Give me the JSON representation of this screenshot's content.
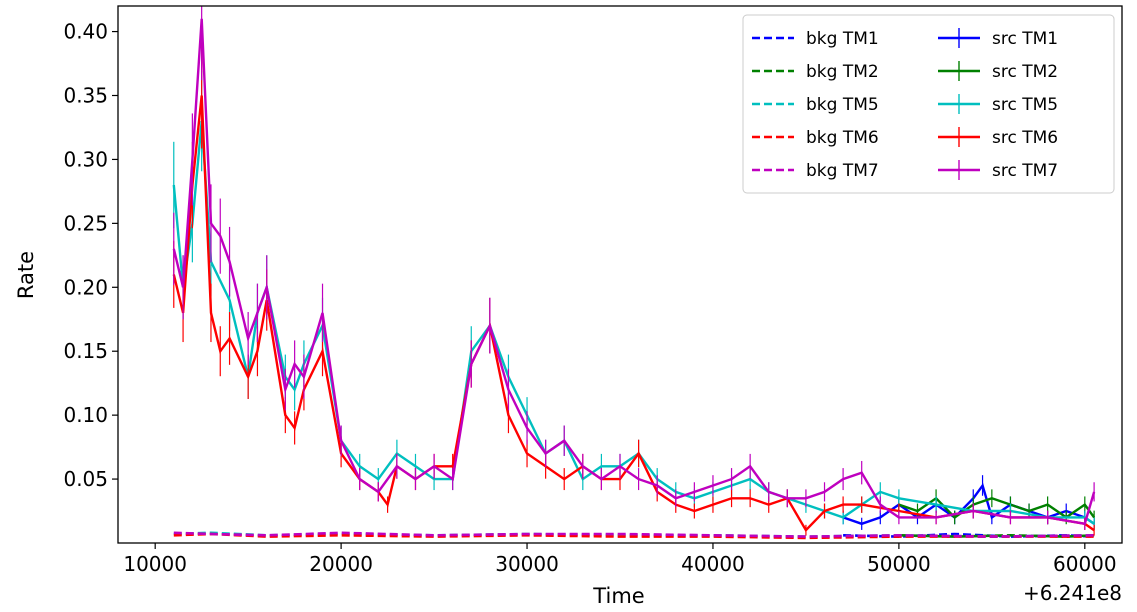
{
  "chart_data": {
    "type": "line",
    "xlabel": "Time",
    "ylabel": "Rate",
    "x_offset_label": "+6.241e8",
    "xlim": [
      8000,
      62000
    ],
    "ylim": [
      0.0,
      0.42
    ],
    "x_ticks": [
      10000,
      20000,
      30000,
      40000,
      50000,
      60000
    ],
    "x_tick_labels": [
      "10000",
      "20000",
      "30000",
      "40000",
      "50000",
      "60000"
    ],
    "y_ticks": [
      0.05,
      0.1,
      0.15,
      0.2,
      0.25,
      0.3,
      0.35,
      0.4
    ],
    "y_tick_labels": [
      "0.05",
      "0.10",
      "0.15",
      "0.20",
      "0.25",
      "0.30",
      "0.35",
      "0.40"
    ],
    "grid": false,
    "legend_position": "top-right",
    "legend_columns": 2,
    "series": [
      {
        "name": "bkg TM1",
        "style": "dashed",
        "color": "#0000ff",
        "x": [
          47000,
          50000,
          53000,
          56000,
          59000,
          60500
        ],
        "y": [
          0.006,
          0.005,
          0.007,
          0.005,
          0.006,
          0.005
        ]
      },
      {
        "name": "bkg TM2",
        "style": "dashed",
        "color": "#008000",
        "x": [
          50000,
          53000,
          56000,
          59000,
          60500
        ],
        "y": [
          0.006,
          0.005,
          0.006,
          0.005,
          0.006
        ]
      },
      {
        "name": "bkg TM5",
        "style": "dashed",
        "color": "#00bfbf",
        "x": [
          11000,
          13000,
          16000,
          20000,
          25000,
          30000,
          35000,
          40000,
          45000,
          50000,
          55000,
          60500
        ],
        "y": [
          0.007,
          0.008,
          0.006,
          0.007,
          0.006,
          0.007,
          0.006,
          0.006,
          0.005,
          0.006,
          0.005,
          0.006
        ]
      },
      {
        "name": "bkg TM6",
        "style": "dashed",
        "color": "#ff0000",
        "x": [
          11000,
          13000,
          16000,
          20000,
          25000,
          30000,
          35000,
          40000,
          45000,
          50000,
          55000,
          60500
        ],
        "y": [
          0.006,
          0.007,
          0.005,
          0.006,
          0.005,
          0.006,
          0.005,
          0.005,
          0.004,
          0.005,
          0.005,
          0.005
        ]
      },
      {
        "name": "bkg TM7",
        "style": "dashed",
        "color": "#bf00bf",
        "x": [
          11000,
          13000,
          16000,
          20000,
          25000,
          30000,
          35000,
          40000,
          45000,
          50000,
          55000,
          60500
        ],
        "y": [
          0.008,
          0.007,
          0.006,
          0.008,
          0.006,
          0.007,
          0.007,
          0.006,
          0.005,
          0.006,
          0.005,
          0.006
        ]
      },
      {
        "name": "src TM1",
        "style": "solid",
        "color": "#0000ff",
        "x": [
          47000,
          48000,
          49000,
          50000,
          51000,
          52000,
          53000,
          54000,
          54500,
          55000,
          56000,
          57000,
          58000,
          59000,
          60000,
          60500
        ],
        "y": [
          0.02,
          0.015,
          0.02,
          0.03,
          0.02,
          0.03,
          0.02,
          0.035,
          0.045,
          0.02,
          0.03,
          0.025,
          0.02,
          0.025,
          0.02,
          0.015
        ]
      },
      {
        "name": "src TM2",
        "style": "solid",
        "color": "#008000",
        "x": [
          50000,
          51000,
          52000,
          53000,
          54000,
          55000,
          56000,
          57000,
          58000,
          59000,
          60000,
          60500
        ],
        "y": [
          0.03,
          0.025,
          0.035,
          0.02,
          0.03,
          0.035,
          0.03,
          0.025,
          0.03,
          0.02,
          0.03,
          0.02
        ]
      },
      {
        "name": "src TM5",
        "style": "solid",
        "color": "#00bfbf",
        "x": [
          11000,
          11500,
          12000,
          12500,
          13000,
          14000,
          15000,
          15500,
          16000,
          17000,
          17500,
          18000,
          19000,
          20000,
          21000,
          22000,
          23000,
          24000,
          25000,
          26000,
          27000,
          28000,
          29000,
          30000,
          31000,
          32000,
          33000,
          34000,
          35000,
          36000,
          37000,
          38000,
          39000,
          40000,
          41000,
          42000,
          43000,
          44000,
          45000,
          46000,
          47000,
          48000,
          49000,
          50000,
          52000,
          54000,
          56000,
          58000,
          60000,
          60500
        ],
        "y": [
          0.28,
          0.2,
          0.25,
          0.33,
          0.22,
          0.19,
          0.13,
          0.18,
          0.2,
          0.13,
          0.12,
          0.14,
          0.17,
          0.08,
          0.06,
          0.05,
          0.07,
          0.06,
          0.05,
          0.05,
          0.15,
          0.17,
          0.13,
          0.1,
          0.07,
          0.08,
          0.05,
          0.06,
          0.06,
          0.07,
          0.05,
          0.04,
          0.035,
          0.04,
          0.045,
          0.05,
          0.04,
          0.035,
          0.03,
          0.025,
          0.02,
          0.03,
          0.04,
          0.035,
          0.03,
          0.025,
          0.025,
          0.02,
          0.02,
          0.015
        ]
      },
      {
        "name": "src TM6",
        "style": "solid",
        "color": "#ff0000",
        "x": [
          11000,
          11500,
          12000,
          12500,
          13000,
          13500,
          14000,
          15000,
          15500,
          16000,
          17000,
          17500,
          18000,
          19000,
          20000,
          21000,
          22000,
          22500,
          23000,
          24000,
          25000,
          26000,
          27000,
          28000,
          29000,
          30000,
          31000,
          32000,
          33000,
          34000,
          35000,
          36000,
          37000,
          38000,
          39000,
          40000,
          41000,
          42000,
          43000,
          44000,
          45000,
          46000,
          47000,
          48000,
          50000,
          52000,
          54000,
          56000,
          58000,
          60000,
          60500
        ],
        "y": [
          0.21,
          0.18,
          0.28,
          0.35,
          0.18,
          0.15,
          0.16,
          0.13,
          0.15,
          0.19,
          0.1,
          0.09,
          0.12,
          0.15,
          0.07,
          0.05,
          0.04,
          0.03,
          0.06,
          0.05,
          0.06,
          0.06,
          0.14,
          0.17,
          0.1,
          0.07,
          0.06,
          0.05,
          0.06,
          0.05,
          0.05,
          0.07,
          0.04,
          0.03,
          0.025,
          0.03,
          0.035,
          0.035,
          0.03,
          0.035,
          0.01,
          0.025,
          0.03,
          0.03,
          0.025,
          0.02,
          0.025,
          0.02,
          0.02,
          0.015,
          0.01
        ]
      },
      {
        "name": "src TM7",
        "style": "solid",
        "color": "#bf00bf",
        "x": [
          11000,
          11500,
          12000,
          12500,
          13000,
          13500,
          14000,
          15000,
          15500,
          16000,
          17000,
          17500,
          18000,
          19000,
          20000,
          21000,
          22000,
          23000,
          24000,
          25000,
          26000,
          27000,
          28000,
          29000,
          30000,
          31000,
          32000,
          33000,
          34000,
          35000,
          36000,
          37000,
          38000,
          39000,
          40000,
          41000,
          42000,
          43000,
          44000,
          45000,
          46000,
          47000,
          48000,
          49000,
          50000,
          52000,
          54000,
          56000,
          58000,
          60000,
          60500
        ],
        "y": [
          0.23,
          0.2,
          0.3,
          0.41,
          0.25,
          0.24,
          0.22,
          0.16,
          0.18,
          0.2,
          0.12,
          0.14,
          0.13,
          0.18,
          0.08,
          0.05,
          0.04,
          0.06,
          0.05,
          0.06,
          0.05,
          0.14,
          0.17,
          0.12,
          0.09,
          0.07,
          0.08,
          0.06,
          0.05,
          0.06,
          0.05,
          0.045,
          0.035,
          0.04,
          0.045,
          0.05,
          0.06,
          0.04,
          0.035,
          0.035,
          0.04,
          0.05,
          0.055,
          0.03,
          0.02,
          0.02,
          0.025,
          0.02,
          0.02,
          0.015,
          0.04
        ]
      }
    ]
  }
}
